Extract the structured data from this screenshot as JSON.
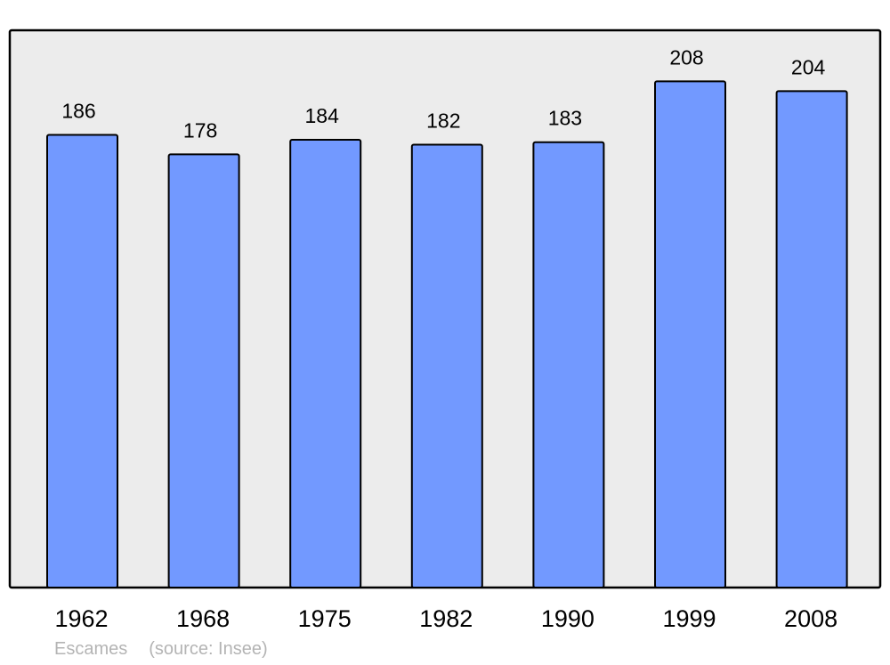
{
  "chart_data": {
    "type": "bar",
    "categories": [
      "1962",
      "1968",
      "1975",
      "1982",
      "1990",
      "1999",
      "2008"
    ],
    "values": [
      186,
      178,
      184,
      182,
      183,
      208,
      204
    ],
    "title": "",
    "xlabel": "",
    "ylabel": "",
    "ylim": [
      0,
      229
    ],
    "grid": false,
    "data_labels": true,
    "colors": {
      "bar": "#7299ff",
      "plot_background": "#ececec",
      "border": "#000000"
    }
  },
  "footer": {
    "place": "Escames",
    "source": "(source: Insee)"
  }
}
